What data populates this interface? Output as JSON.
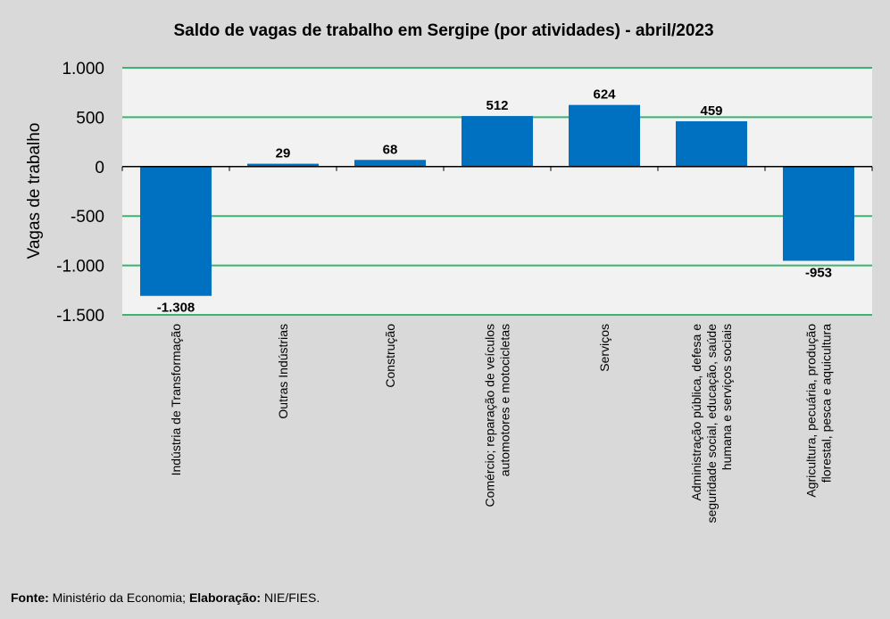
{
  "chart_data": {
    "type": "bar",
    "title": "Saldo de vagas de trabalho em Sergipe (por atividades) - abril/2023",
    "xlabel": "",
    "ylabel": "Vagas de trabalho",
    "ylim": [
      -1500,
      1000
    ],
    "yticks": [
      1000,
      500,
      0,
      -500,
      -1000,
      -1500
    ],
    "ytick_labels": [
      "1.000",
      "500",
      "0",
      "-500",
      "-1.000",
      "-1.500"
    ],
    "grid": true,
    "categories": [
      [
        "Indústria de Transformação"
      ],
      [
        "Outras Indústrias"
      ],
      [
        "Construção"
      ],
      [
        "Comércio; reparação de veículos",
        "automotores e motocicletas"
      ],
      [
        "Serviços"
      ],
      [
        "Administração pública, defesa e",
        "seguridade social, educação, saúde",
        "humana e serviços sociais"
      ],
      [
        "Agricultura, pecuária, produção",
        "florestal, pesca e aquicultura"
      ]
    ],
    "values": [
      -1308,
      29,
      68,
      512,
      624,
      459,
      -953
    ],
    "value_labels": [
      "-1.308",
      "29",
      "68",
      "512",
      "624",
      "459",
      "-953"
    ],
    "colors": {
      "bar": "#0070c0",
      "grid": "#3cb371",
      "plot_bg": "#f2f2f2",
      "bg": "#d9d9d9"
    }
  },
  "footer": {
    "source_label": "Fonte:",
    "source": " Ministério da Economia; ",
    "elab_label": "Elaboração:",
    "elab": " NIE/FIES."
  }
}
